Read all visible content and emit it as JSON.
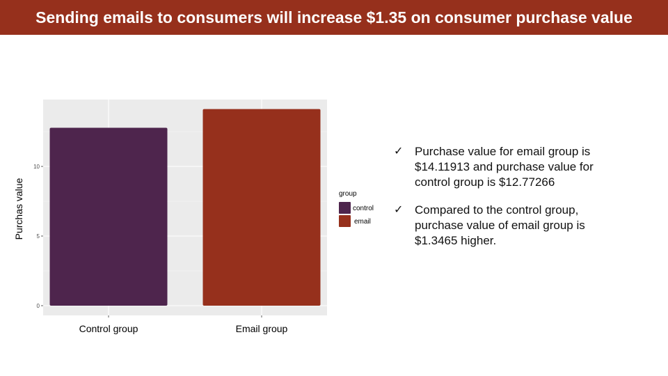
{
  "slide": {
    "title": "Sending emails to consumers will increase $1.35 on consumer purchase value"
  },
  "chart_data": {
    "type": "bar",
    "categories": [
      "Control group",
      "Email group"
    ],
    "values": [
      12.77266,
      14.11913
    ],
    "ylabel": "Purchas  value",
    "xlabel": "",
    "ylim": [
      -0.7,
      14.8
    ],
    "yticks": [
      0,
      5,
      10
    ],
    "grid": true,
    "legend": {
      "title": "group",
      "placement": "right",
      "entries": [
        "control",
        "email"
      ]
    },
    "colors": [
      "#4e254d",
      "#96301c"
    ]
  },
  "bullets": [
    {
      "icon": "check-icon",
      "text": "Purchase value for email group is $14.11913 and purchase value for control group is $12.77266"
    },
    {
      "icon": "check-icon",
      "text": "Compared to the control group, purchase value of email group is $1.3465 higher."
    }
  ],
  "colors": {
    "title_bar": "#96301c",
    "panel_bg": "#ebebeb"
  }
}
